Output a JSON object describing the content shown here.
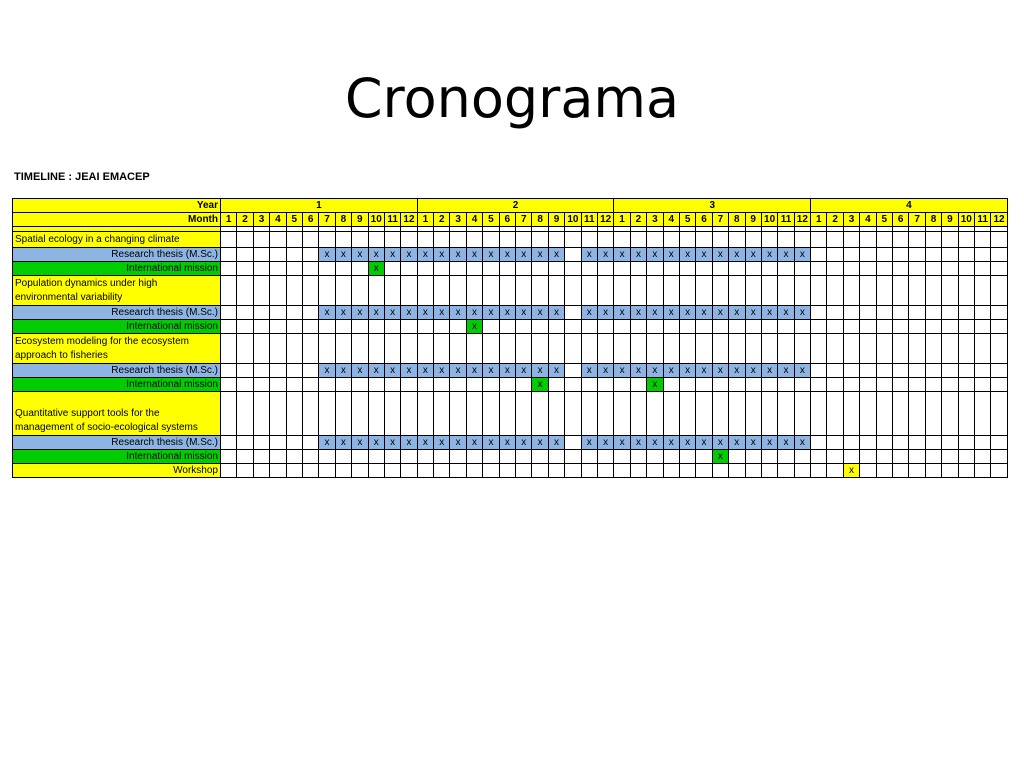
{
  "title": "Cronograma",
  "subtitle": "TIMELINE : JEAI EMACEP",
  "header": {
    "year_label": "Year",
    "month_label": "Month",
    "years": [
      "1",
      "2",
      "3",
      "4"
    ],
    "months": [
      "1",
      "2",
      "3",
      "4",
      "5",
      "6",
      "7",
      "8",
      "9",
      "10",
      "11",
      "12"
    ]
  },
  "rows": [
    {
      "type": "section",
      "label": "Spatial ecology in a changing climate",
      "lines": 1
    },
    {
      "type": "task",
      "label": "Research thesis (M.Sc.)",
      "color": "#8db4e2",
      "marks": [
        6,
        7,
        8,
        9,
        10,
        11,
        12,
        13,
        14,
        15,
        16,
        17,
        18,
        19,
        20,
        22,
        23,
        24,
        25,
        26,
        27,
        28,
        29,
        30,
        31,
        32,
        33,
        34,
        35
      ]
    },
    {
      "type": "task",
      "label": "International mission",
      "color": "#00cc00",
      "marks": [
        9
      ]
    },
    {
      "type": "section",
      "label": "Population dynamics under high environmental variability",
      "lines": 2
    },
    {
      "type": "task",
      "label": "Research thesis (M.Sc.)",
      "color": "#8db4e2",
      "marks": [
        6,
        7,
        8,
        9,
        10,
        11,
        12,
        13,
        14,
        15,
        16,
        17,
        18,
        19,
        20,
        22,
        23,
        24,
        25,
        26,
        27,
        28,
        29,
        30,
        31,
        32,
        33,
        34,
        35
      ]
    },
    {
      "type": "task",
      "label": "International mission",
      "color": "#00cc00",
      "marks": [
        15
      ]
    },
    {
      "type": "section",
      "label": "Ecosystem modeling for the ecosystem approach to fisheries",
      "lines": 2
    },
    {
      "type": "task",
      "label": "Research thesis (M.Sc.)",
      "color": "#8db4e2",
      "marks": [
        6,
        7,
        8,
        9,
        10,
        11,
        12,
        13,
        14,
        15,
        16,
        17,
        18,
        19,
        20,
        22,
        23,
        24,
        25,
        26,
        27,
        28,
        29,
        30,
        31,
        32,
        33,
        34,
        35
      ]
    },
    {
      "type": "task",
      "label": "International mission",
      "color": "#00cc00",
      "marks": [
        19,
        26
      ]
    },
    {
      "type": "section",
      "label": "Quantitative support tools for the management of socio-ecological systems",
      "lines": 3
    },
    {
      "type": "task",
      "label": "Research thesis (M.Sc.)",
      "color": "#8db4e2",
      "marks": [
        6,
        7,
        8,
        9,
        10,
        11,
        12,
        13,
        14,
        15,
        16,
        17,
        18,
        19,
        20,
        22,
        23,
        24,
        25,
        26,
        27,
        28,
        29,
        30,
        31,
        32,
        33,
        34,
        35
      ]
    },
    {
      "type": "task",
      "label": "International mission",
      "color": "#00cc00",
      "marks": [
        30
      ]
    },
    {
      "type": "task",
      "label": "Workshop",
      "color": "#ffff00",
      "marks": [
        38
      ]
    }
  ],
  "mark_char": "x"
}
